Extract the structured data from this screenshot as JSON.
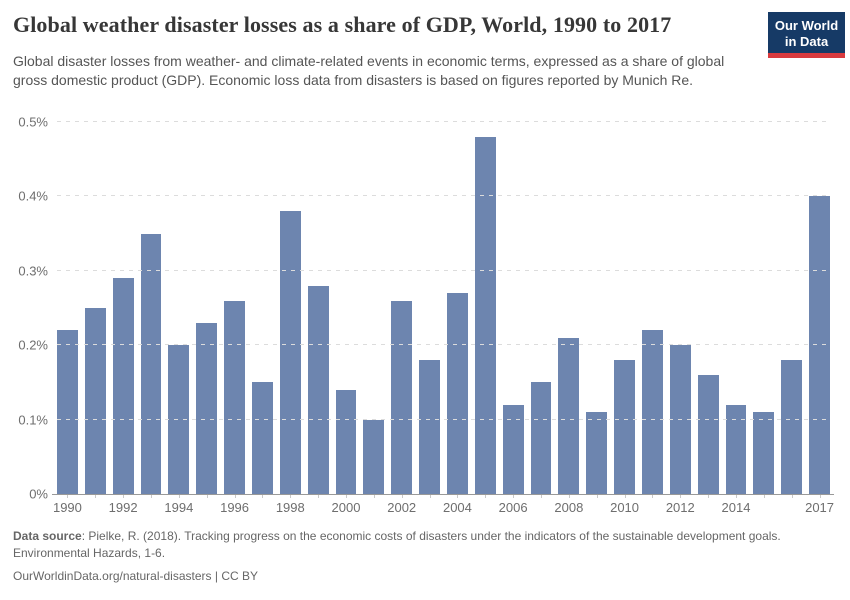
{
  "header": {
    "title": "Global weather disaster losses as a share of GDP, World, 1990 to 2017",
    "subtitle": "Global disaster losses from weather- and climate-related events in economic terms, expressed as a share of global gross domestic product (GDP). Economic loss data from disasters is based on figures reported by Munich Re.",
    "logo": {
      "line1": "Our World",
      "line2": "in Data",
      "bg_color": "#163a66",
      "accent_color": "#d93a3e"
    }
  },
  "chart_data": {
    "type": "bar",
    "title": "Global weather disaster losses as a share of GDP, World, 1990 to 2017",
    "categories": [
      "1990",
      "1991",
      "1992",
      "1993",
      "1994",
      "1995",
      "1996",
      "1997",
      "1998",
      "1999",
      "2000",
      "2001",
      "2002",
      "2003",
      "2004",
      "2005",
      "2006",
      "2007",
      "2008",
      "2009",
      "2010",
      "2011",
      "2012",
      "2013",
      "2014",
      "2015",
      "2016",
      "2017"
    ],
    "values": [
      0.22,
      0.25,
      0.29,
      0.35,
      0.2,
      0.23,
      0.26,
      0.15,
      0.38,
      0.28,
      0.14,
      0.1,
      0.26,
      0.18,
      0.27,
      0.48,
      0.12,
      0.15,
      0.21,
      0.11,
      0.18,
      0.22,
      0.2,
      0.16,
      0.12,
      0.11,
      0.18,
      0.4
    ],
    "unit": "% of GDP",
    "xlabel": "",
    "ylabel": "",
    "ylim": [
      0,
      0.5
    ],
    "yticks": [
      0,
      0.1,
      0.2,
      0.3,
      0.4,
      0.5
    ],
    "ytick_labels": [
      "0%",
      "0.1%",
      "0.2%",
      "0.3%",
      "0.4%",
      "0.5%"
    ],
    "xtick_labels": [
      "1990",
      "1992",
      "1994",
      "1996",
      "1998",
      "2000",
      "2002",
      "2004",
      "2006",
      "2008",
      "2010",
      "2012",
      "2014",
      "2017"
    ],
    "grid": "horizontal-dashed",
    "legend": "none",
    "bar_color": "#6d85af"
  },
  "footer": {
    "source_label": "Data source",
    "source_text": ": Pielke, R. (2018). Tracking progress on the economic costs of disasters under the indicators of the sustainable development goals. Environmental Hazards, 1-6.",
    "link_line": "OurWorldinData.org/natural-disasters | CC BY"
  }
}
